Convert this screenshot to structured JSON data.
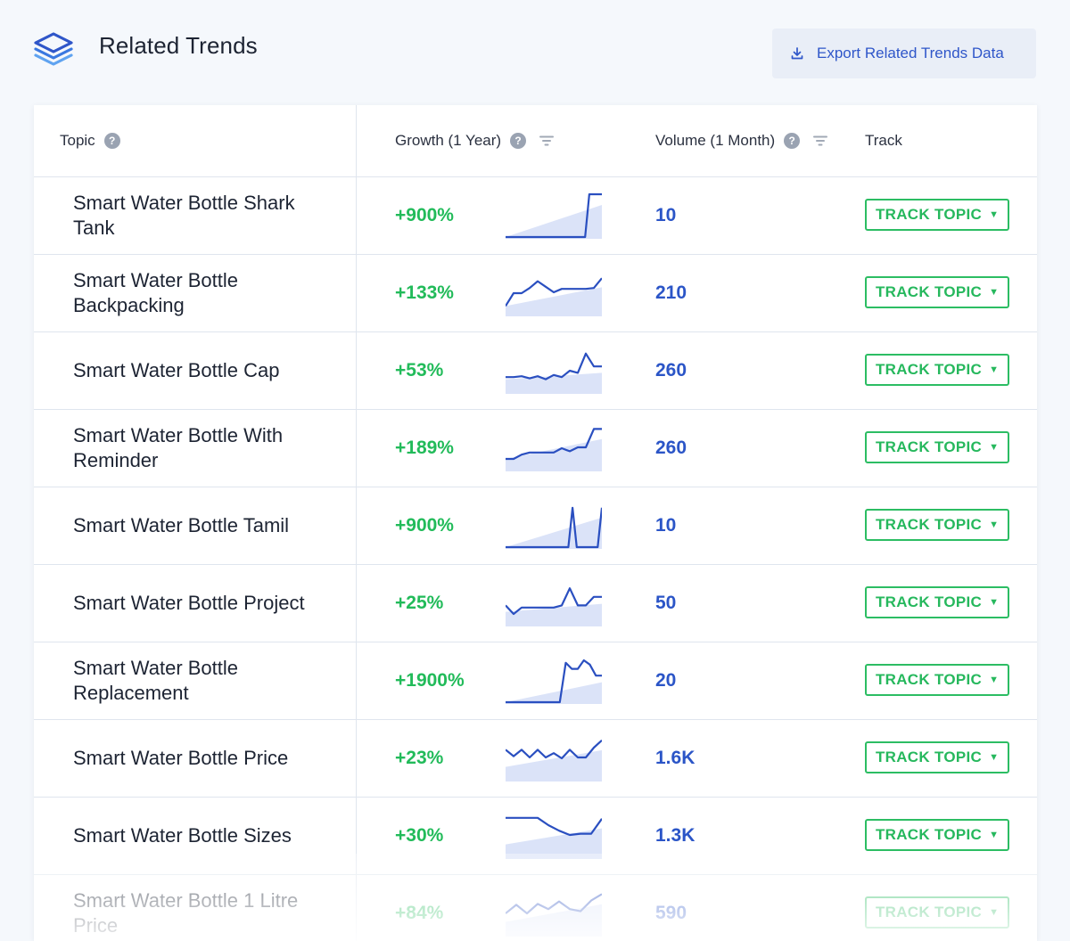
{
  "header": {
    "title": "Related Trends",
    "export_label": "Export Related Trends Data",
    "logo_icon": "layers-icon",
    "export_icon": "download-icon"
  },
  "columns": {
    "topic": "Topic",
    "growth": "Growth (1 Year)",
    "volume": "Volume (1 Month)",
    "track": "Track"
  },
  "colors": {
    "growth": "#22bb5a",
    "volume": "#2b55c7",
    "spark_line": "#2a4fc0",
    "spark_fill": "#dbe3f8",
    "track_border": "#2cbd63"
  },
  "rows": [
    {
      "topic": "Smart Water Bottle Shark Tank",
      "growth": "+900%",
      "volume": "10",
      "track": "TRACK TOPIC",
      "trend": [
        0,
        0,
        0,
        0,
        0,
        0,
        0,
        0,
        0,
        0,
        0,
        0,
        0,
        0,
        0,
        0,
        0,
        0,
        0,
        0,
        100,
        100,
        100,
        100
      ]
    },
    {
      "topic": "Smart Water Bottle Backpacking",
      "growth": "+133%",
      "volume": "210",
      "track": "TRACK TOPIC",
      "trend": [
        20,
        50,
        50,
        62,
        78,
        65,
        52,
        60,
        60,
        60,
        60,
        62,
        85
      ]
    },
    {
      "topic": "Smart Water Bottle Cap",
      "growth": "+53%",
      "volume": "260",
      "track": "TRACK TOPIC",
      "trend": [
        35,
        35,
        37,
        32,
        37,
        30,
        40,
        35,
        50,
        45,
        90,
        60,
        60
      ]
    },
    {
      "topic": "Smart Water Bottle With Reminder",
      "growth": "+189%",
      "volume": "260",
      "track": "TRACK TOPIC",
      "trend": [
        25,
        25,
        35,
        40,
        40,
        40,
        40,
        50,
        43,
        52,
        52,
        95,
        95
      ]
    },
    {
      "topic": "Smart Water Bottle Tamil",
      "growth": "+900%",
      "volume": "10",
      "track": "TRACK TOPIC",
      "trend": [
        0,
        0,
        0,
        0,
        0,
        0,
        0,
        0,
        0,
        0,
        0,
        0,
        0,
        0,
        0,
        0,
        92,
        0,
        0,
        0,
        0,
        0,
        0,
        92
      ]
    },
    {
      "topic": "Smart Water Bottle Project",
      "growth": "+25%",
      "volume": "50",
      "track": "TRACK TOPIC",
      "trend": [
        45,
        25,
        40,
        40,
        40,
        40,
        40,
        45,
        85,
        45,
        45,
        65,
        65
      ]
    },
    {
      "topic": "Smart Water Bottle Replacement",
      "growth": "+1900%",
      "volume": "20",
      "track": "TRACK TOPIC",
      "trend": [
        0,
        0,
        0,
        0,
        0,
        0,
        0,
        0,
        0,
        0,
        92,
        78,
        78,
        98,
        88,
        62,
        62
      ]
    },
    {
      "topic": "Smart Water Bottle Price",
      "growth": "+23%",
      "volume": "1.6K",
      "track": "TRACK TOPIC",
      "trend": [
        70,
        55,
        70,
        52,
        70,
        52,
        62,
        50,
        70,
        52,
        52,
        75,
        92
      ]
    },
    {
      "topic": "Smart Water Bottle Sizes",
      "growth": "+30%",
      "volume": "1.3K",
      "track": "TRACK TOPIC",
      "trend": [
        92,
        92,
        92,
        92,
        75,
        62,
        52,
        55,
        55,
        90
      ]
    },
    {
      "topic": "Smart Water Bottle 1 Litre Price",
      "growth": "+84%",
      "volume": "590",
      "track": "TRACK TOPIC",
      "trend": [
        50,
        70,
        50,
        72,
        60,
        78,
        60,
        55,
        80,
        95
      ]
    }
  ]
}
